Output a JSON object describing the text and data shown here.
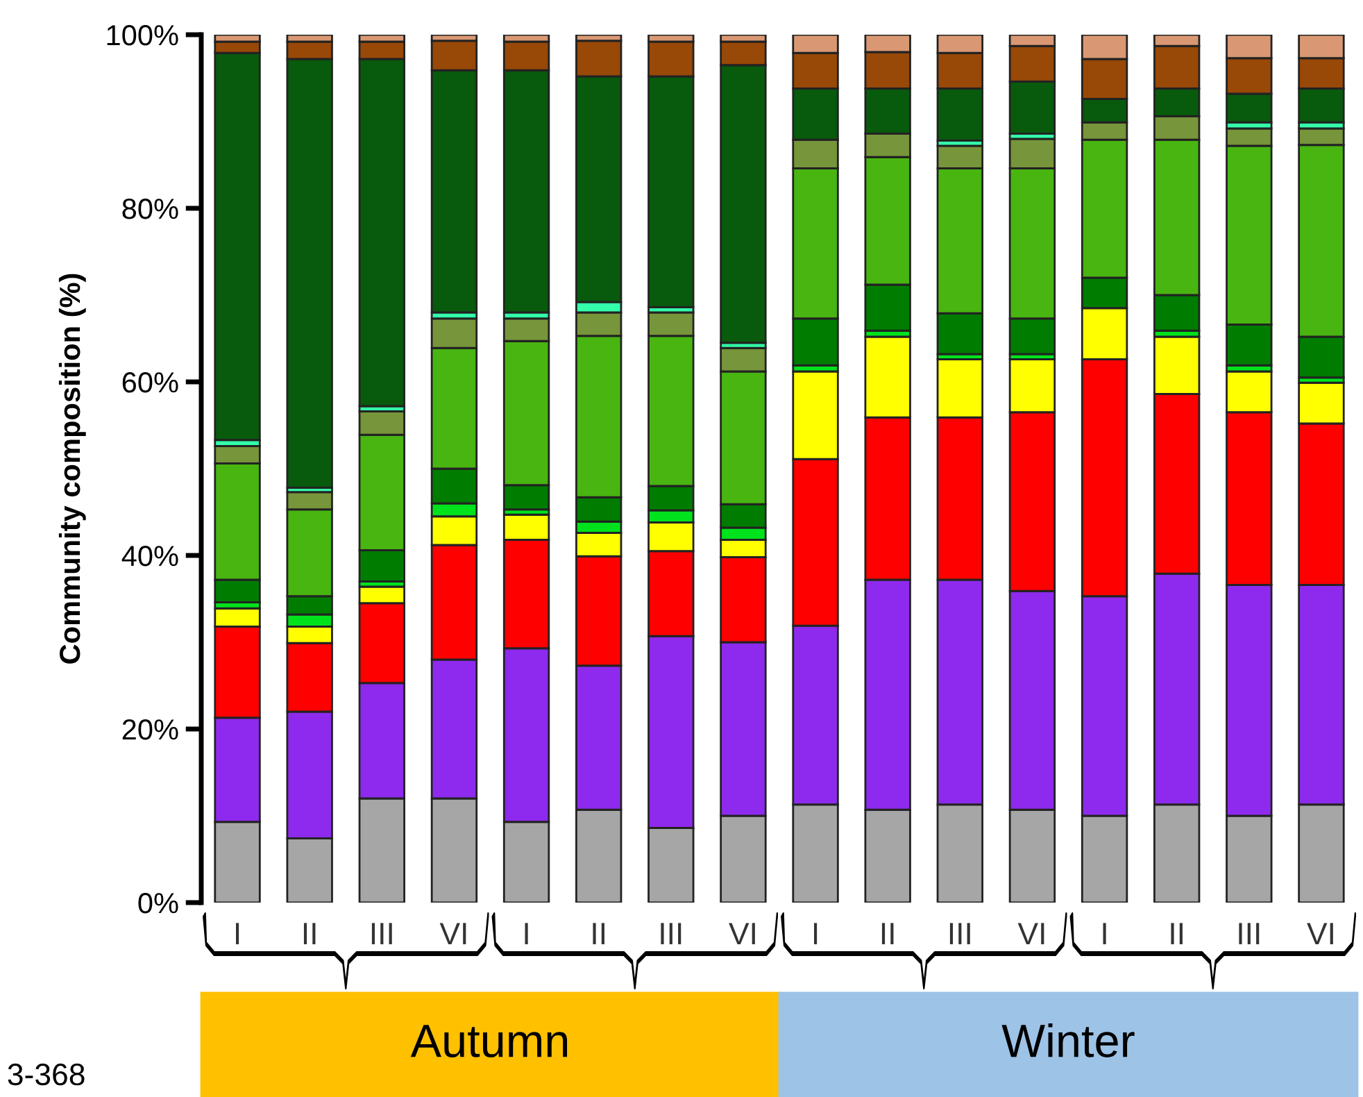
{
  "chart_data": {
    "type": "bar",
    "stacked": true,
    "ylabel": "Community composition (%)",
    "categories": [
      "I",
      "II",
      "III",
      "VI",
      "I",
      "II",
      "III",
      "VI",
      "I",
      "II",
      "III",
      "VI",
      "I",
      "II",
      "III",
      "VI"
    ],
    "ylim": [
      0,
      100
    ],
    "yticks": [
      {
        "value": 0,
        "label": "0%"
      },
      {
        "value": 20,
        "label": "20%"
      },
      {
        "value": 40,
        "label": "40%"
      },
      {
        "value": 60,
        "label": "60%"
      },
      {
        "value": 80,
        "label": "80%"
      },
      {
        "value": 100,
        "label": "100%"
      }
    ],
    "grid": false,
    "legend": false,
    "annotations": [
      "Autumn",
      "Winter",
      "3-368"
    ],
    "series": [
      {
        "color": "#a6a6a6",
        "values": [
          9.3,
          7.4,
          12.0,
          12.0,
          9.3,
          10.7,
          8.6,
          10.0,
          11.3,
          10.7,
          11.3,
          10.7,
          10.0,
          11.3,
          10.0,
          11.3
        ]
      },
      {
        "color": "#8e2aed",
        "values": [
          12.0,
          14.6,
          13.3,
          16.0,
          20.0,
          16.6,
          22.1,
          20.0,
          20.6,
          26.5,
          25.9,
          25.2,
          25.3,
          26.6,
          26.6,
          25.3
        ]
      },
      {
        "color": "#ff0000",
        "values": [
          10.5,
          7.9,
          9.2,
          13.2,
          12.5,
          12.6,
          9.8,
          9.8,
          19.2,
          18.7,
          18.7,
          20.6,
          27.3,
          20.7,
          19.9,
          18.6
        ]
      },
      {
        "color": "#ffff00",
        "values": [
          2.1,
          1.9,
          1.9,
          3.3,
          2.9,
          2.7,
          3.3,
          2.0,
          10.1,
          9.3,
          6.7,
          6.1,
          5.9,
          6.6,
          4.7,
          4.7
        ]
      },
      {
        "color": "#00e31c",
        "values": [
          0.7,
          1.4,
          0.6,
          1.5,
          0.6,
          1.3,
          1.4,
          1.4,
          0.7,
          0.7,
          0.6,
          0.6,
          0,
          0.7,
          0.7,
          0.6
        ]
      },
      {
        "color": "#007d00",
        "values": [
          2.6,
          2.1,
          3.6,
          4.0,
          2.8,
          2.8,
          2.8,
          2.7,
          5.4,
          5.3,
          4.7,
          4.1,
          3.5,
          4.1,
          4.7,
          4.7
        ]
      },
      {
        "color": "#48b511",
        "values": [
          13.4,
          10.0,
          13.3,
          13.9,
          16.6,
          18.6,
          17.3,
          15.3,
          17.3,
          14.7,
          16.7,
          17.3,
          15.9,
          17.9,
          20.6,
          22.1
        ]
      },
      {
        "color": "#77953a",
        "values": [
          2.0,
          2.0,
          2.7,
          3.4,
          2.6,
          2.7,
          2.7,
          2.7,
          3.3,
          2.7,
          2.6,
          3.4,
          2.0,
          2.7,
          2.0,
          1.9
        ]
      },
      {
        "color": "#33ffaa",
        "values": [
          0.7,
          0.5,
          0.6,
          0.7,
          0.7,
          1.2,
          0.6,
          0.6,
          0,
          0,
          0.6,
          0.6,
          0,
          0,
          0.7,
          0.7
        ]
      },
      {
        "color": "#085a0c",
        "values": [
          44.6,
          49.4,
          40.0,
          27.9,
          27.9,
          26.0,
          26.6,
          32.0,
          5.9,
          5.2,
          6.0,
          6.0,
          2.7,
          3.2,
          3.3,
          3.9
        ]
      },
      {
        "color": "#984807",
        "values": [
          1.3,
          2.0,
          2.0,
          3.4,
          3.3,
          4.1,
          4.0,
          2.7,
          4.1,
          4.2,
          4.1,
          4.1,
          4.6,
          4.9,
          4.1,
          3.5
        ]
      },
      {
        "color": "#d99873",
        "values": [
          0.8,
          0.8,
          0.8,
          0.7,
          0.8,
          0.7,
          0.8,
          0.8,
          2.1,
          2.0,
          2.1,
          1.3,
          2.8,
          1.3,
          2.7,
          2.7
        ]
      }
    ]
  }
}
